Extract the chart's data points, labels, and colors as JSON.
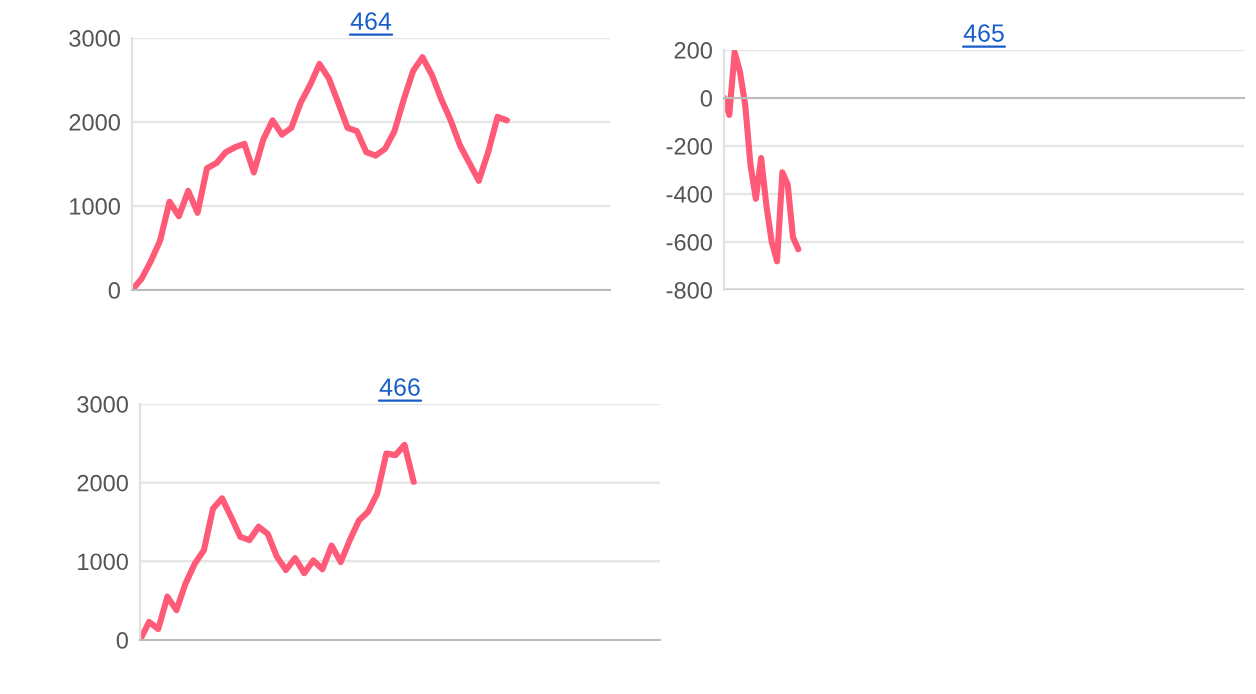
{
  "chart_data": [
    {
      "type": "line",
      "title": "464",
      "categories": [
        null,
        null,
        null,
        null,
        null,
        null,
        null,
        null,
        null,
        null,
        null,
        null,
        null,
        null,
        null,
        null,
        null,
        null,
        null,
        null,
        null,
        null,
        null,
        null,
        null,
        null,
        null,
        null,
        null,
        null,
        null,
        null,
        null,
        null,
        null,
        null,
        null,
        null,
        null,
        null,
        null,
        null,
        null,
        null,
        null,
        null,
        null,
        null,
        null,
        null,
        null,
        null
      ],
      "series": [
        {
          "color": "#ff5a78",
          "values": [
            0,
            130,
            340,
            590,
            1050,
            880,
            1180,
            920,
            1450,
            1510,
            1640,
            1700,
            1740,
            1400,
            1790,
            2020,
            1850,
            1930,
            2230,
            2440,
            2690,
            2520,
            2230,
            1930,
            1890,
            1640,
            1600,
            1680,
            1890,
            2270,
            2610,
            2770,
            2560,
            2270,
            2020,
            1720,
            1510,
            1300,
            1640,
            2060,
            2020,
            null,
            null,
            null,
            null,
            null,
            null,
            null,
            null,
            null,
            null,
            null
          ]
        }
      ],
      "ylim": [
        0,
        3000
      ],
      "yticks": [
        0,
        1000,
        2000,
        3000
      ],
      "grid": "y",
      "legend": false
    },
    {
      "type": "line",
      "title": "465",
      "categories": [
        null,
        null,
        null,
        null,
        null,
        null,
        null,
        null,
        null,
        null,
        null,
        null,
        null,
        null,
        null,
        null,
        null,
        null,
        null,
        null,
        null,
        null,
        null,
        null,
        null,
        null,
        null,
        null,
        null,
        null,
        null,
        null,
        null,
        null,
        null,
        null,
        null,
        null,
        null,
        null,
        null,
        null,
        null,
        null,
        null,
        null,
        null,
        null,
        null,
        null,
        null,
        null,
        null,
        null,
        null,
        null,
        null,
        null,
        null,
        null,
        null,
        null,
        null,
        null,
        null,
        null,
        null,
        null,
        null,
        null,
        null,
        null,
        null,
        null,
        null,
        null,
        null,
        null,
        null,
        null,
        null,
        null,
        null,
        null,
        null,
        null,
        null,
        null,
        null,
        null,
        null,
        null,
        null,
        null,
        null,
        null,
        null,
        null,
        null
      ],
      "series": [
        {
          "color": "#ff5a78",
          "values": [
            0,
            -70,
            190,
            110,
            -30,
            -280,
            -420,
            -250,
            -450,
            -600,
            -680,
            -310,
            -360,
            -580,
            -630,
            null,
            null,
            null,
            null,
            null,
            null,
            null,
            null,
            null,
            null,
            null,
            null,
            null,
            null,
            null,
            null,
            null,
            null,
            null,
            null,
            null,
            null,
            null,
            null,
            null,
            null,
            null,
            null,
            null,
            null,
            null,
            null,
            null,
            null,
            null,
            null,
            null,
            null,
            null,
            null,
            null,
            null,
            null,
            null,
            null,
            null,
            null,
            null,
            null,
            null,
            null,
            null,
            null,
            null,
            null,
            null,
            null,
            null,
            null,
            null,
            null,
            null,
            null,
            null,
            null,
            null,
            null,
            null,
            null,
            null,
            null,
            null,
            null,
            null,
            null,
            null,
            null,
            null,
            null,
            null,
            null,
            null,
            null,
            null
          ]
        }
      ],
      "ylim": [
        -800,
        200
      ],
      "yticks": [
        -800,
        -600,
        -400,
        -200,
        0,
        200
      ],
      "grid": "y",
      "legend": false
    },
    {
      "type": "line",
      "title": "466",
      "categories": [
        null,
        null,
        null,
        null,
        null,
        null,
        null,
        null,
        null,
        null,
        null,
        null,
        null,
        null,
        null,
        null,
        null,
        null,
        null,
        null,
        null,
        null,
        null,
        null,
        null,
        null,
        null,
        null,
        null,
        null,
        null,
        null,
        null,
        null,
        null,
        null,
        null,
        null,
        null,
        null,
        null,
        null,
        null,
        null,
        null,
        null,
        null,
        null,
        null,
        null,
        null,
        null,
        null,
        null,
        null,
        null,
        null,
        null
      ],
      "series": [
        {
          "color": "#ff5a78",
          "values": [
            0,
            230,
            140,
            550,
            380,
            720,
            970,
            1140,
            1670,
            1800,
            1560,
            1310,
            1270,
            1440,
            1350,
            1060,
            890,
            1040,
            850,
            1010,
            900,
            1200,
            990,
            1270,
            1520,
            1630,
            1860,
            2370,
            2350,
            2480,
            2010,
            null,
            null,
            null,
            null,
            null,
            null,
            null,
            null,
            null,
            null,
            null,
            null,
            null,
            null,
            null,
            null,
            null,
            null,
            null,
            null,
            null,
            null,
            null,
            null,
            null,
            null,
            null
          ]
        }
      ],
      "ylim": [
        0,
        3000
      ],
      "yticks": [
        0,
        1000,
        2000,
        3000
      ],
      "grid": "y",
      "legend": false
    }
  ]
}
